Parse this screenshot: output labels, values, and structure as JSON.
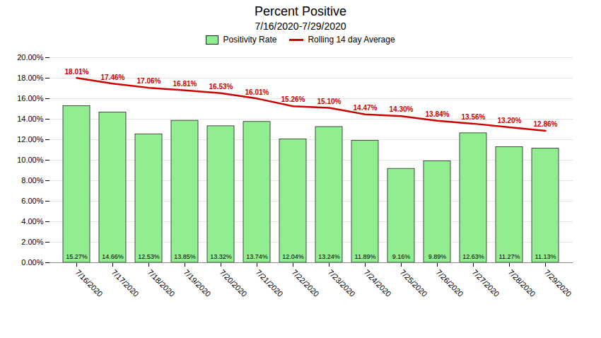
{
  "chart_data": {
    "type": "bar",
    "title": "Percent Positive",
    "subtitle": "7/16/2020-7/29/2020",
    "categories": [
      "7/16/2020",
      "7/17/2020",
      "7/18/2020",
      "7/19/2020",
      "7/20/2020",
      "7/21/2020",
      "7/22/2020",
      "7/23/2020",
      "7/24/2020",
      "7/25/2020",
      "7/26/2020",
      "7/27/2020",
      "7/28/2020",
      "7/29/2020"
    ],
    "series": [
      {
        "name": "Positivity Rate",
        "type": "bar",
        "color": "#90EE90",
        "values": [
          15.27,
          14.66,
          12.53,
          13.85,
          13.32,
          13.74,
          12.04,
          13.24,
          11.89,
          9.16,
          9.89,
          12.63,
          11.27,
          11.13
        ],
        "value_labels": [
          "15.27%",
          "14.66%",
          "12.53%",
          "13.85%",
          "13.32%",
          "13.74%",
          "12.04%",
          "13.24%",
          "11.89%",
          "9.16%",
          "9.89%",
          "12.63%",
          "11.27%",
          "11.13%"
        ]
      },
      {
        "name": "Rolling 14 day Average",
        "type": "line",
        "color": "#cc0000",
        "values": [
          18.01,
          17.46,
          17.06,
          16.81,
          16.53,
          16.01,
          15.26,
          15.1,
          14.47,
          14.3,
          13.84,
          13.56,
          13.2,
          12.86
        ],
        "value_labels": [
          "18.01%",
          "17.46%",
          "17.06%",
          "16.81%",
          "16.53%",
          "16.01%",
          "15.26%",
          "15.10%",
          "14.47%",
          "14.30%",
          "13.84%",
          "13.56%",
          "13.20%",
          "12.86%"
        ]
      }
    ],
    "ylim": [
      0,
      20
    ],
    "yticks": [
      {
        "value": 0,
        "label": "0.00%"
      },
      {
        "value": 2,
        "label": "2.00%"
      },
      {
        "value": 4,
        "label": "4.00%"
      },
      {
        "value": 6,
        "label": "6.00%"
      },
      {
        "value": 8,
        "label": "8.00%"
      },
      {
        "value": 10,
        "label": "10.00%"
      },
      {
        "value": 12,
        "label": "12.00%"
      },
      {
        "value": 14,
        "label": "14.00%"
      },
      {
        "value": 16,
        "label": "16.00%"
      },
      {
        "value": 18,
        "label": "18.00%"
      },
      {
        "value": 20,
        "label": "20.00%"
      }
    ],
    "grid": true,
    "legend": "top",
    "data_labels": true
  }
}
